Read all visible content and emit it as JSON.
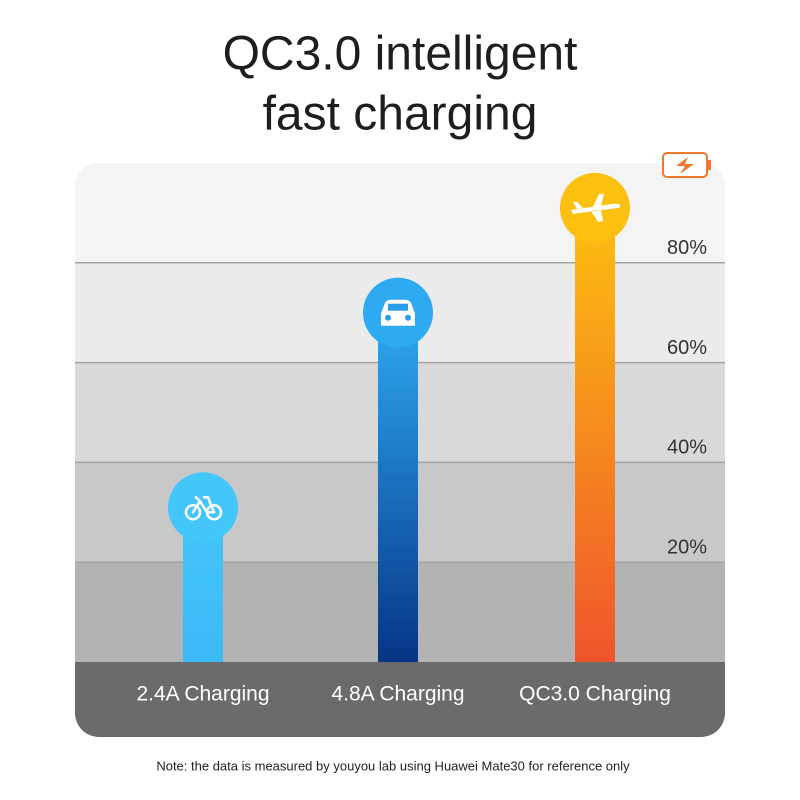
{
  "chart_data": {
    "type": "bar",
    "title": [
      "QC3.0 intelligent",
      "fast charging"
    ],
    "categories": [
      "2.4A Charging",
      "4.8A Charging",
      "QC3.0 Charging"
    ],
    "values": [
      31,
      70,
      91
    ],
    "colors": [
      [
        "#45c6fa",
        "#3bb9f6"
      ],
      [
        "#2eaaf2",
        "#053585"
      ],
      [
        "#fcc010",
        "#ef552c"
      ]
    ],
    "ylim": [
      0,
      100
    ],
    "yticks": [
      {
        "value": 20,
        "label": "20%"
      },
      {
        "value": 40,
        "label": "40%"
      },
      {
        "value": 60,
        "label": "60%"
      },
      {
        "value": 80,
        "label": "80%"
      }
    ],
    "grid": true,
    "note": "Note: the data is measured by youyou lab using Huawei Mate30 for reference only"
  }
}
